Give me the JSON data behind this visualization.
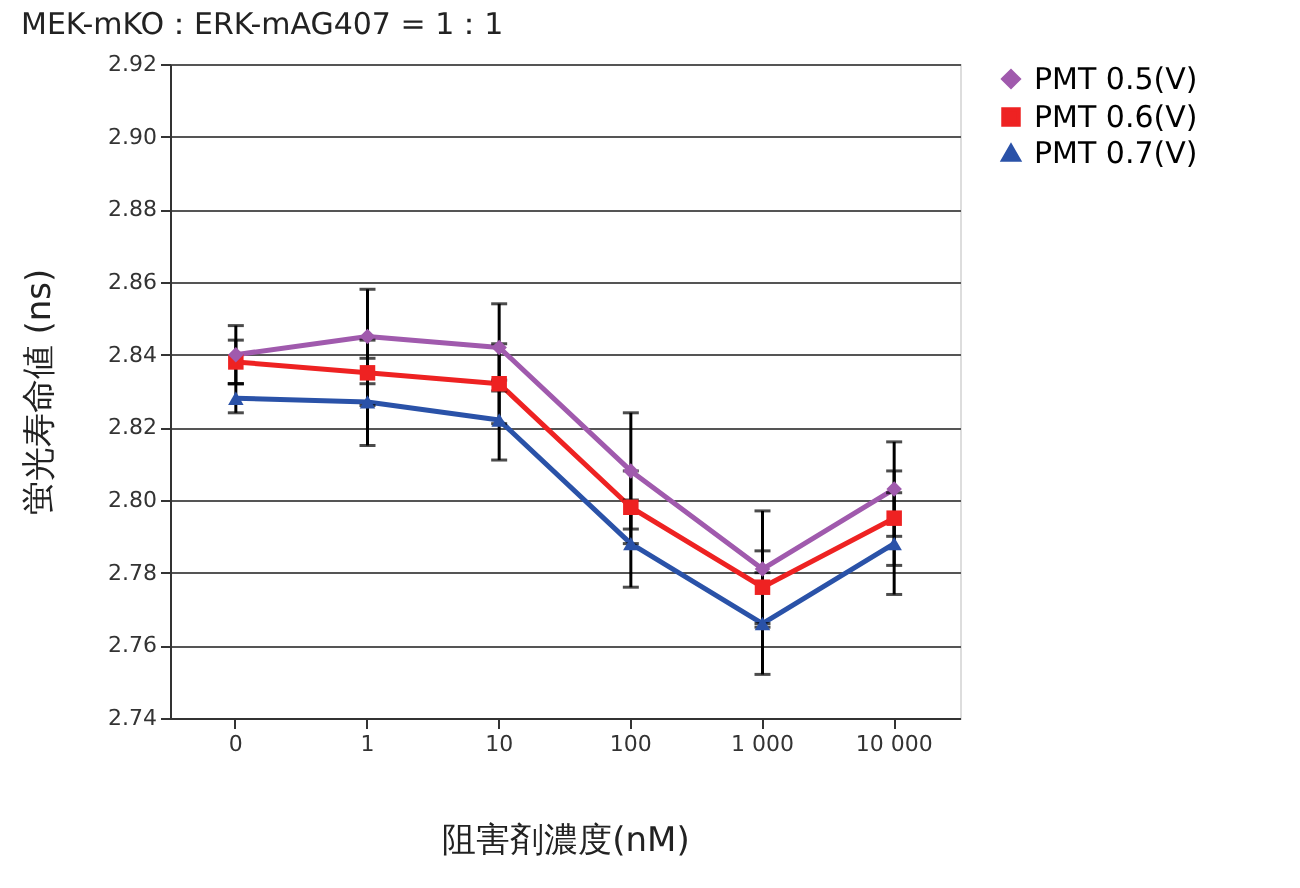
{
  "chart_data": {
    "type": "line",
    "title": "MEK-mKO：ERK-mAG407 = 1：1",
    "xlabel": "阻害剤濃度(nM)",
    "ylabel": "蛍光寿命値 (ns)",
    "categories": [
      "0",
      "1",
      "10",
      "100",
      "1 000",
      "10 000"
    ],
    "series": [
      {
        "name": "PMT 0.5(V)",
        "color": "#a05aad",
        "marker": "diamond",
        "values": [
          2.84,
          2.845,
          2.842,
          2.808,
          2.781,
          2.803
        ],
        "errors": [
          0.008,
          0.013,
          0.012,
          0.016,
          0.016,
          0.013
        ]
      },
      {
        "name": "PMT 0.6(V)",
        "color": "#ee2222",
        "marker": "square",
        "values": [
          2.838,
          2.835,
          2.832,
          2.798,
          2.776,
          2.795
        ],
        "errors": [
          0.006,
          0.009,
          0.011,
          0.01,
          0.01,
          0.013
        ]
      },
      {
        "name": "PMT 0.7(V)",
        "color": "#2a52a8",
        "marker": "triangle",
        "values": [
          2.828,
          2.827,
          2.822,
          2.788,
          2.766,
          2.788
        ],
        "errors": [
          0.004,
          0.012,
          0.011,
          0.012,
          0.014,
          0.014
        ]
      }
    ],
    "ylim": [
      2.74,
      2.92
    ],
    "yticks": [
      {
        "value": 2.74,
        "label": "2.74"
      },
      {
        "value": 2.76,
        "label": "2.76"
      },
      {
        "value": 2.78,
        "label": "2.78"
      },
      {
        "value": 2.8,
        "label": "2.80"
      },
      {
        "value": 2.82,
        "label": "2.82"
      },
      {
        "value": 2.84,
        "label": "2.84"
      },
      {
        "value": 2.86,
        "label": "2.86"
      },
      {
        "value": 2.88,
        "label": "2.88"
      },
      {
        "value": 2.9,
        "label": "2.90"
      },
      {
        "value": 2.92,
        "label": "2.92"
      }
    ],
    "grid": "y",
    "legend": "right",
    "line_style": "solid"
  }
}
